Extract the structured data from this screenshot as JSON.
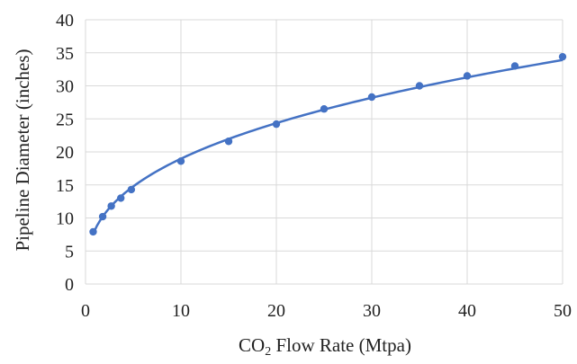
{
  "chart_data": {
    "type": "scatter",
    "xlabel_main": "CO",
    "xlabel_sub": "2",
    "xlabel_rest": " Flow Rate (Mtpa)",
    "ylabel": "Pipeline Diameter (inches)",
    "xlim": [
      0,
      50
    ],
    "ylim": [
      0,
      40
    ],
    "xticks": [
      0,
      10,
      20,
      30,
      40,
      50
    ],
    "yticks": [
      0,
      5,
      10,
      15,
      20,
      25,
      30,
      35,
      40
    ],
    "grid": true,
    "series": [
      {
        "marker_color": "#4472c4",
        "line_color": "#4472c4",
        "points": [
          {
            "x": 0.8,
            "y": 7.9
          },
          {
            "x": 1.8,
            "y": 10.2
          },
          {
            "x": 2.7,
            "y": 11.8
          },
          {
            "x": 3.7,
            "y": 13.0
          },
          {
            "x": 4.8,
            "y": 14.3
          },
          {
            "x": 10,
            "y": 18.6
          },
          {
            "x": 15,
            "y": 21.6
          },
          {
            "x": 20,
            "y": 24.2
          },
          {
            "x": 25,
            "y": 26.5
          },
          {
            "x": 30,
            "y": 28.3
          },
          {
            "x": 35,
            "y": 30.0
          },
          {
            "x": 40,
            "y": 31.5
          },
          {
            "x": 45,
            "y": 33.0
          },
          {
            "x": 50,
            "y": 34.4
          }
        ],
        "trendline": "power"
      }
    ]
  }
}
